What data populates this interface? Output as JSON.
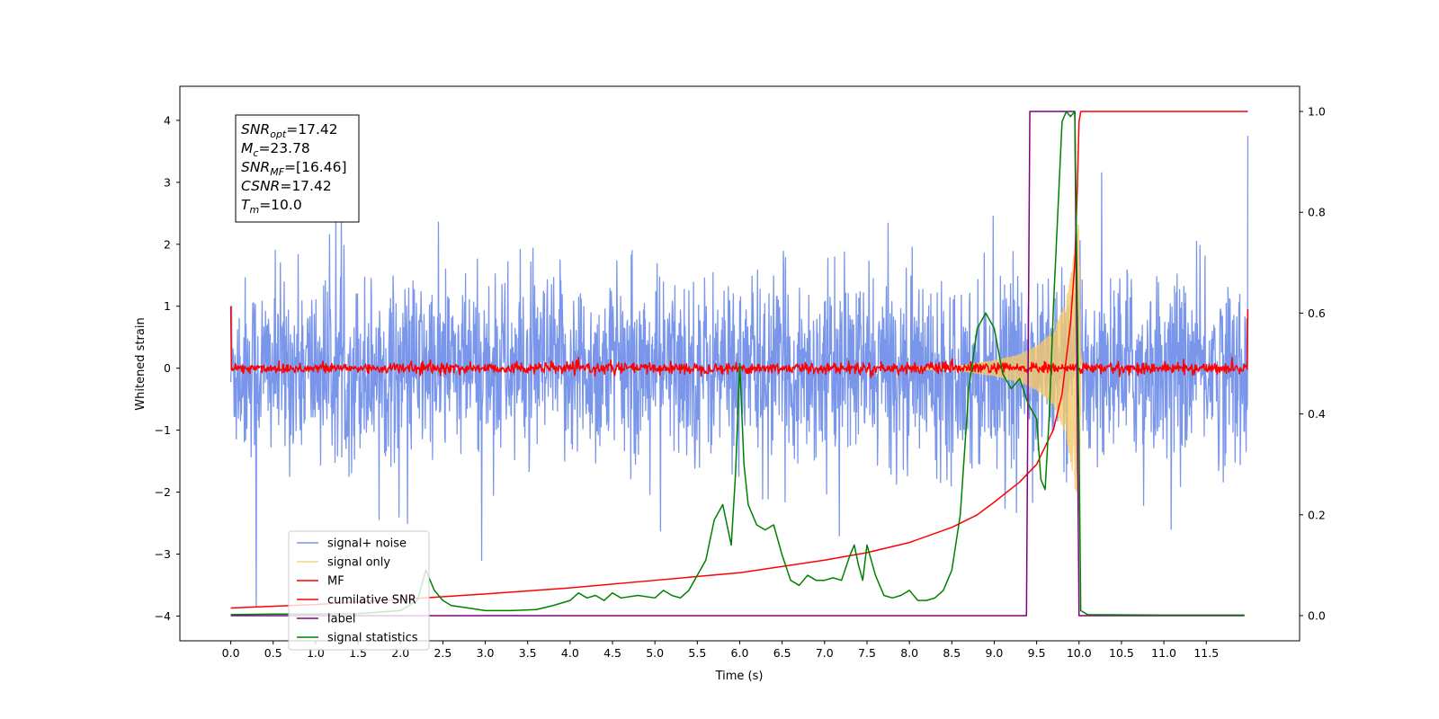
{
  "chart_data": {
    "type": "line",
    "xlabel": "Time (s)",
    "ylabel_left": "Whitened strain",
    "ylabel_right": "",
    "xlim": [
      -0.6,
      12.6
    ],
    "ylim_left": [
      -4.4,
      4.55
    ],
    "ylim_right": [
      -0.05,
      1.05
    ],
    "x_ticks": [
      0.0,
      0.5,
      1.0,
      1.5,
      2.0,
      2.5,
      3.0,
      3.5,
      4.0,
      4.5,
      5.0,
      5.5,
      6.0,
      6.5,
      7.0,
      7.5,
      8.0,
      8.5,
      9.0,
      9.5,
      10.0,
      10.5,
      11.0,
      11.5
    ],
    "x_tick_labels": [
      "0.0",
      "0.5",
      "1.0",
      "1.5",
      "2.0",
      "2.5",
      "3.0",
      "3.5",
      "4.0",
      "4.5",
      "5.0",
      "5.5",
      "6.0",
      "6.5",
      "7.0",
      "7.5",
      "8.0",
      "8.5",
      "9.0",
      "9.5",
      "10.0",
      "10.5",
      "11.0",
      "11.5"
    ],
    "y_left_ticks": [
      -4,
      -3,
      -2,
      -1,
      0,
      1,
      2,
      3,
      4
    ],
    "y_left_tick_labels": [
      "−4",
      "−3",
      "−2",
      "−1",
      "0",
      "1",
      "2",
      "3",
      "4"
    ],
    "y_right_ticks": [
      0.0,
      0.2,
      0.4,
      0.6,
      0.8,
      1.0
    ],
    "y_right_tick_labels": [
      "0.0",
      "0.2",
      "0.4",
      "0.6",
      "0.8",
      "1.0"
    ],
    "grid": false,
    "legend_position": "lower-left",
    "info_box": {
      "position": "upper-left",
      "lines": [
        {
          "sym": "SNR",
          "sub": "opt",
          "value": "=17.42"
        },
        {
          "sym": "M",
          "sub": "c",
          "value": "=23.78"
        },
        {
          "sym": "SNR",
          "sub": "MF",
          "value": "=[16.46]"
        },
        {
          "sym": "CSNR",
          "sub": "",
          "value": "=17.42"
        },
        {
          "sym": "T",
          "sub": "m",
          "value": "=10.0"
        }
      ]
    },
    "series": [
      {
        "name": "signal+ noise",
        "color": "#4169e1",
        "alpha": 0.7,
        "axis": "left",
        "kind": "noise",
        "x_range": [
          0.0,
          11.99
        ],
        "envelope": {
          "typical_low": -1.6,
          "typical_high": 1.7,
          "max": 3.75,
          "min": -3.85
        }
      },
      {
        "name": "signal only",
        "color": "#f5c96b",
        "alpha": 0.8,
        "axis": "left",
        "kind": "chirp",
        "merger_time": 10.0,
        "points": [
          [
            8.5,
            0.02
          ],
          [
            9.0,
            0.12
          ],
          [
            9.3,
            0.22
          ],
          [
            9.5,
            0.35
          ],
          [
            9.7,
            0.6
          ],
          [
            9.85,
            1.1
          ],
          [
            9.95,
            1.9
          ],
          [
            10.0,
            2.4
          ],
          [
            10.02,
            0.3
          ],
          [
            10.05,
            0.02
          ]
        ]
      },
      {
        "name": "MF",
        "color": "#ff0000",
        "axis": "left",
        "kind": "noise",
        "x_range": [
          0.0,
          11.99
        ],
        "envelope": {
          "typical_low": -0.08,
          "typical_high": 0.1,
          "start": 1.0,
          "end": 0.95
        }
      },
      {
        "name": "cumilative SNR",
        "color": "#ff0000",
        "axis": "right",
        "points": [
          [
            0.0,
            0.015
          ],
          [
            1.0,
            0.022
          ],
          [
            2.0,
            0.032
          ],
          [
            3.0,
            0.043
          ],
          [
            4.0,
            0.055
          ],
          [
            5.0,
            0.07
          ],
          [
            6.0,
            0.085
          ],
          [
            7.0,
            0.11
          ],
          [
            7.5,
            0.125
          ],
          [
            8.0,
            0.145
          ],
          [
            8.5,
            0.175
          ],
          [
            8.8,
            0.2
          ],
          [
            9.0,
            0.225
          ],
          [
            9.3,
            0.265
          ],
          [
            9.5,
            0.3
          ],
          [
            9.7,
            0.37
          ],
          [
            9.8,
            0.44
          ],
          [
            9.9,
            0.58
          ],
          [
            9.95,
            0.7
          ],
          [
            9.98,
            0.85
          ],
          [
            10.0,
            0.98
          ],
          [
            10.02,
            1.0
          ],
          [
            11.99,
            1.0
          ]
        ]
      },
      {
        "name": "label",
        "color": "#800080",
        "axis": "right",
        "points": [
          [
            0.0,
            0.0
          ],
          [
            9.38,
            0.0
          ],
          [
            9.42,
            1.0
          ],
          [
            9.95,
            1.0
          ],
          [
            10.0,
            0.0
          ],
          [
            11.95,
            0.0
          ]
        ]
      },
      {
        "name": "signal statistics",
        "color": "#008000",
        "axis": "right",
        "points": [
          [
            0.0,
            0.002
          ],
          [
            0.5,
            0.003
          ],
          [
            1.0,
            0.003
          ],
          [
            1.5,
            0.004
          ],
          [
            2.0,
            0.01
          ],
          [
            2.2,
            0.03
          ],
          [
            2.3,
            0.09
          ],
          [
            2.4,
            0.05
          ],
          [
            2.5,
            0.03
          ],
          [
            2.6,
            0.02
          ],
          [
            2.8,
            0.015
          ],
          [
            3.0,
            0.01
          ],
          [
            3.3,
            0.01
          ],
          [
            3.6,
            0.012
          ],
          [
            3.8,
            0.02
          ],
          [
            4.0,
            0.03
          ],
          [
            4.1,
            0.045
          ],
          [
            4.2,
            0.035
          ],
          [
            4.3,
            0.04
          ],
          [
            4.4,
            0.03
          ],
          [
            4.5,
            0.045
          ],
          [
            4.6,
            0.035
          ],
          [
            4.8,
            0.04
          ],
          [
            5.0,
            0.035
          ],
          [
            5.1,
            0.05
          ],
          [
            5.2,
            0.04
          ],
          [
            5.3,
            0.035
          ],
          [
            5.4,
            0.05
          ],
          [
            5.5,
            0.08
          ],
          [
            5.6,
            0.11
          ],
          [
            5.7,
            0.19
          ],
          [
            5.8,
            0.22
          ],
          [
            5.9,
            0.14
          ],
          [
            5.95,
            0.28
          ],
          [
            6.0,
            0.5
          ],
          [
            6.05,
            0.3
          ],
          [
            6.1,
            0.22
          ],
          [
            6.2,
            0.18
          ],
          [
            6.3,
            0.17
          ],
          [
            6.4,
            0.18
          ],
          [
            6.5,
            0.12
          ],
          [
            6.6,
            0.07
          ],
          [
            6.7,
            0.06
          ],
          [
            6.8,
            0.08
          ],
          [
            6.9,
            0.07
          ],
          [
            7.0,
            0.07
          ],
          [
            7.1,
            0.075
          ],
          [
            7.2,
            0.07
          ],
          [
            7.3,
            0.12
          ],
          [
            7.35,
            0.14
          ],
          [
            7.4,
            0.1
          ],
          [
            7.45,
            0.07
          ],
          [
            7.5,
            0.14
          ],
          [
            7.6,
            0.08
          ],
          [
            7.7,
            0.04
          ],
          [
            7.8,
            0.035
          ],
          [
            7.9,
            0.04
          ],
          [
            8.0,
            0.05
          ],
          [
            8.1,
            0.03
          ],
          [
            8.2,
            0.03
          ],
          [
            8.3,
            0.035
          ],
          [
            8.4,
            0.05
          ],
          [
            8.5,
            0.09
          ],
          [
            8.6,
            0.2
          ],
          [
            8.7,
            0.45
          ],
          [
            8.8,
            0.57
          ],
          [
            8.9,
            0.6
          ],
          [
            9.0,
            0.57
          ],
          [
            9.1,
            0.48
          ],
          [
            9.2,
            0.45
          ],
          [
            9.3,
            0.47
          ],
          [
            9.4,
            0.42
          ],
          [
            9.5,
            0.39
          ],
          [
            9.55,
            0.27
          ],
          [
            9.6,
            0.25
          ],
          [
            9.65,
            0.4
          ],
          [
            9.7,
            0.62
          ],
          [
            9.75,
            0.8
          ],
          [
            9.8,
            0.98
          ],
          [
            9.85,
            1.0
          ],
          [
            9.9,
            0.99
          ],
          [
            9.95,
            1.0
          ],
          [
            10.0,
            0.35
          ],
          [
            10.02,
            0.01
          ],
          [
            10.1,
            0.002
          ],
          [
            11.0,
            0.001
          ],
          [
            11.95,
            0.001
          ]
        ]
      }
    ]
  }
}
